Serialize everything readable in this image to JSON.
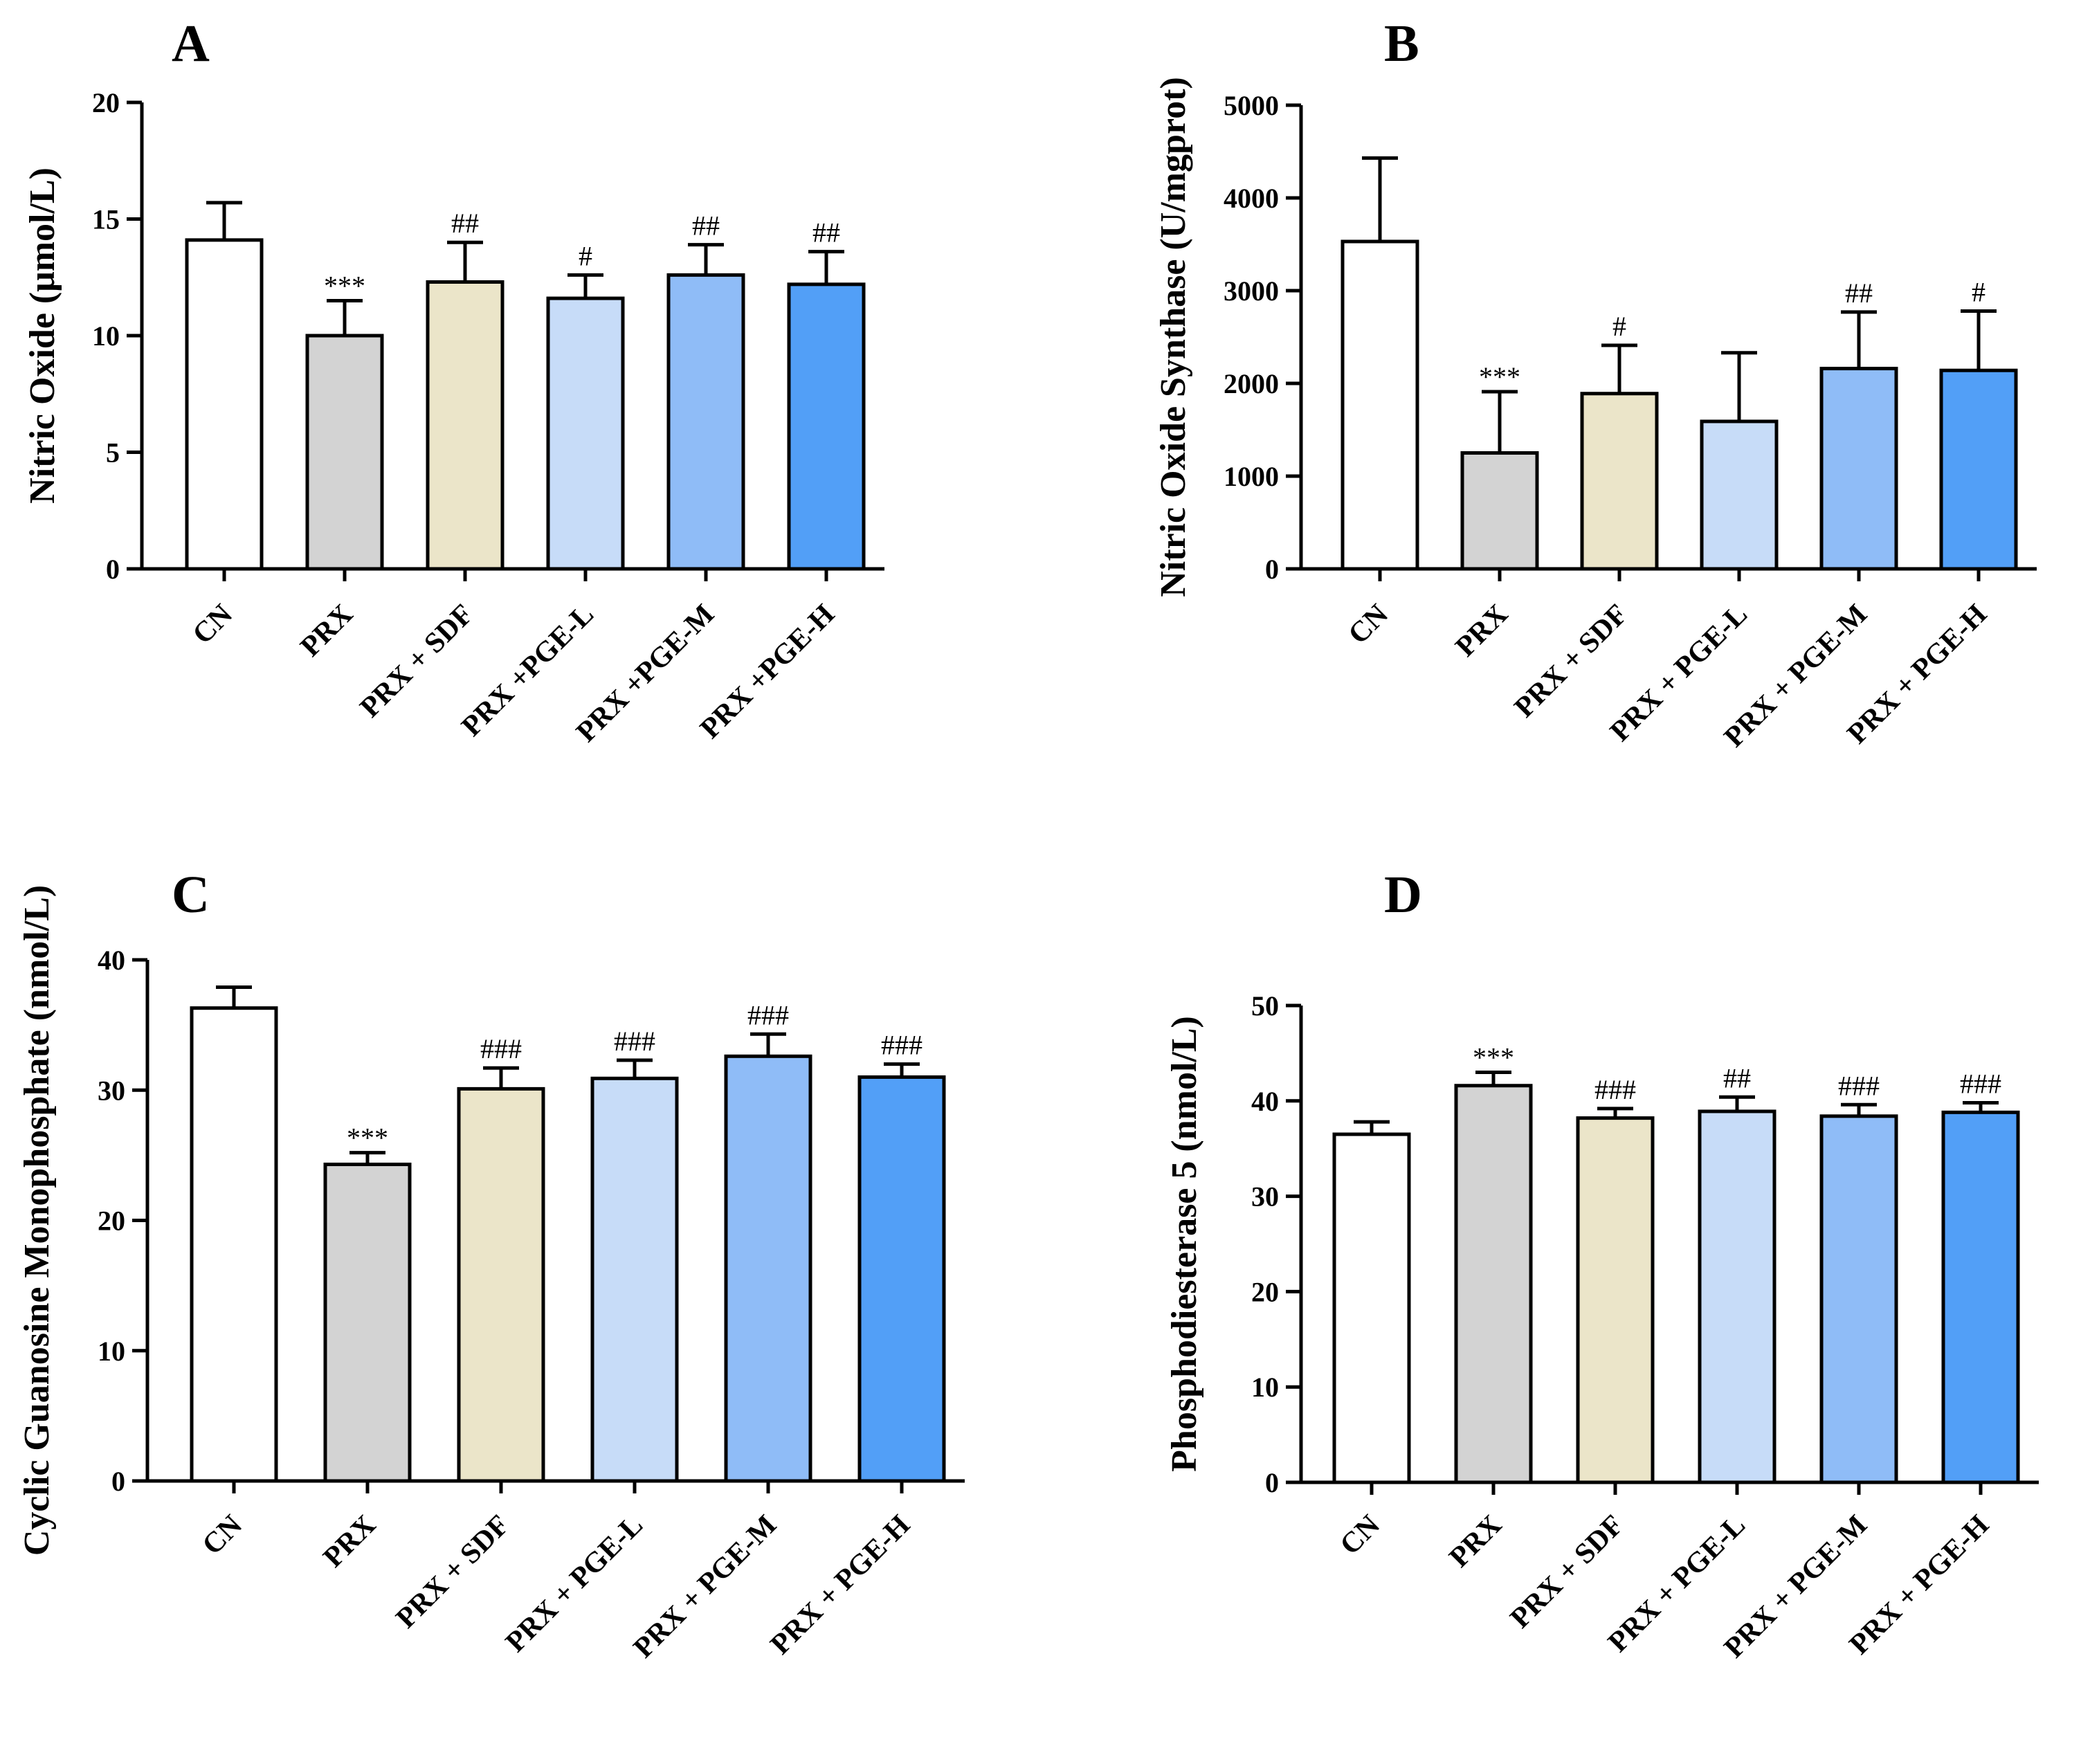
{
  "chart_data": [
    {
      "type": "bar",
      "panel_label": "A",
      "ylabel": "Nitric Oxide (μmol/L)",
      "ylim": [
        0,
        20
      ],
      "yticks": [
        "0",
        "5",
        "10",
        "15",
        "20"
      ],
      "categories": [
        "CN",
        "PRX",
        "PRX + SDF",
        "PRX +PGE-L",
        "PRX +PGE-M",
        "PRX +PGE-H"
      ],
      "values": [
        14.1,
        10.0,
        12.3,
        11.6,
        12.6,
        12.2
      ],
      "errors": [
        1.6,
        1.5,
        1.7,
        1.0,
        1.3,
        1.4
      ],
      "annotations": [
        "",
        "***",
        "##",
        "#",
        "##",
        "##"
      ],
      "bar_colors": [
        "#ffffff",
        "#d3d3d3",
        "#ebe5c9",
        "#c7dcf8",
        "#8fbcf7",
        "#529ff7"
      ],
      "grid": false,
      "legend": "none"
    },
    {
      "type": "bar",
      "panel_label": "B",
      "ylabel": "Nitric Oxide Synthase (U/mgprot)",
      "ylim": [
        0,
        5000
      ],
      "yticks": [
        "0",
        "1000",
        "2000",
        "3000",
        "4000",
        "5000"
      ],
      "categories": [
        "CN",
        "PRX",
        "PRX + SDF",
        "PRX + PGE-L",
        "PRX + PGE-M",
        "PRX + PGE-H"
      ],
      "values": [
        3530,
        1250,
        1890,
        1590,
        2160,
        2140
      ],
      "errors": [
        900,
        660,
        520,
        740,
        610,
        640
      ],
      "annotations": [
        "",
        "***",
        "#",
        "",
        "##",
        "#"
      ],
      "bar_colors": [
        "#ffffff",
        "#d3d3d3",
        "#ebe5c9",
        "#c7dcf8",
        "#8fbcf7",
        "#529ff7"
      ],
      "grid": false,
      "legend": "none"
    },
    {
      "type": "bar",
      "panel_label": "C",
      "ylabel": "Cyclic Guanosine Monophosphate (nmol/L)",
      "ylim": [
        0,
        40
      ],
      "yticks": [
        "0",
        "10",
        "20",
        "30",
        "40"
      ],
      "categories": [
        "CN",
        "PRX",
        "PRX + SDF",
        "PRX + PGE-L",
        "PRX + PGE-M",
        "PRX + PGE-H"
      ],
      "values": [
        36.3,
        24.3,
        30.1,
        30.9,
        32.6,
        31.0
      ],
      "errors": [
        1.6,
        0.9,
        1.6,
        1.4,
        1.7,
        1.0
      ],
      "annotations": [
        "",
        "***",
        "###",
        "###",
        "###",
        "###"
      ],
      "bar_colors": [
        "#ffffff",
        "#d3d3d3",
        "#ebe5c9",
        "#c7dcf8",
        "#8fbcf7",
        "#529ff7"
      ],
      "grid": false,
      "legend": "none"
    },
    {
      "type": "bar",
      "panel_label": "D",
      "ylabel": "Phosphodiesterase 5 (nmol/L)",
      "ylim": [
        0,
        50
      ],
      "yticks": [
        "0",
        "10",
        "20",
        "30",
        "40",
        "50"
      ],
      "categories": [
        "CN",
        "PRX",
        "PRX + SDF",
        "PRX + PGE-L",
        "PRX + PGE-M",
        "PRX + PGE-H"
      ],
      "values": [
        36.5,
        41.6,
        38.2,
        38.9,
        38.4,
        38.8
      ],
      "errors": [
        1.3,
        1.4,
        1.0,
        1.5,
        1.2,
        1.0
      ],
      "annotations": [
        "",
        "***",
        "###",
        "##",
        "###",
        "###"
      ],
      "bar_colors": [
        "#ffffff",
        "#d3d3d3",
        "#ebe5c9",
        "#c7dcf8",
        "#8fbcf7",
        "#529ff7"
      ],
      "grid": false,
      "legend": "none"
    }
  ]
}
